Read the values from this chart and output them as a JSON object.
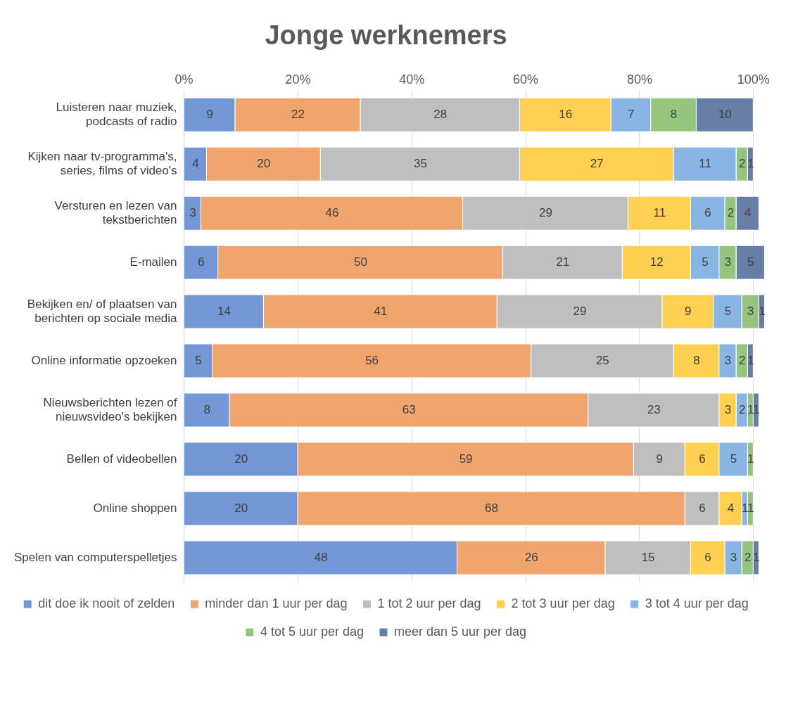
{
  "chart_data": {
    "type": "bar",
    "orientation": "horizontal",
    "stacked": true,
    "title": "Jonge werknemers",
    "categories": [
      "Luisteren naar muziek, podcasts of radio",
      "Kijken naar tv-programma's, series, films of video's",
      "Versturen en lezen van tekstberichten",
      "E-mailen",
      "Bekijken en/ of plaatsen van berichten op sociale media",
      "Online informatie opzoeken",
      "Nieuwsberichten lezen of nieuwsvideo's bekijken",
      "Bellen of videobellen",
      "Online shoppen",
      "Spelen van computerspelletjes"
    ],
    "series": [
      {
        "name": "dit doe ik nooit of zelden",
        "color": "#7397d6",
        "values": [
          9,
          4,
          3,
          6,
          14,
          5,
          8,
          20,
          20,
          48
        ]
      },
      {
        "name": "minder dan 1 uur per dag",
        "color": "#f0a46e",
        "values": [
          22,
          20,
          46,
          50,
          41,
          56,
          63,
          59,
          68,
          26
        ]
      },
      {
        "name": "1 tot 2 uur per dag",
        "color": "#bfbfbf",
        "values": [
          28,
          35,
          29,
          21,
          29,
          25,
          23,
          9,
          6,
          15
        ]
      },
      {
        "name": "2 tot 3 uur per dag",
        "color": "#ffd04f",
        "values": [
          16,
          27,
          11,
          12,
          9,
          8,
          3,
          6,
          4,
          6
        ]
      },
      {
        "name": "3 tot 4 uur per dag",
        "color": "#88b5e3",
        "values": [
          7,
          11,
          6,
          5,
          5,
          3,
          2,
          5,
          1,
          3
        ]
      },
      {
        "name": "4 tot 5 uur per dag",
        "color": "#95c47e",
        "values": [
          8,
          2,
          2,
          3,
          3,
          2,
          1,
          1,
          1,
          2
        ]
      },
      {
        "name": "meer dan 5 uur per dag",
        "color": "#687ea8",
        "values": [
          10,
          1,
          4,
          5,
          1,
          1,
          1,
          null,
          null,
          1
        ]
      }
    ],
    "xlim": [
      0,
      102
    ],
    "xticks": [
      {
        "value": 0,
        "label": "0%"
      },
      {
        "value": 20,
        "label": "20%"
      },
      {
        "value": 40,
        "label": "40%"
      },
      {
        "value": 60,
        "label": "60%"
      },
      {
        "value": 80,
        "label": "80%"
      },
      {
        "value": 100,
        "label": "100%"
      }
    ],
    "grid": "x",
    "legend": "bottom",
    "data_labels": true
  }
}
